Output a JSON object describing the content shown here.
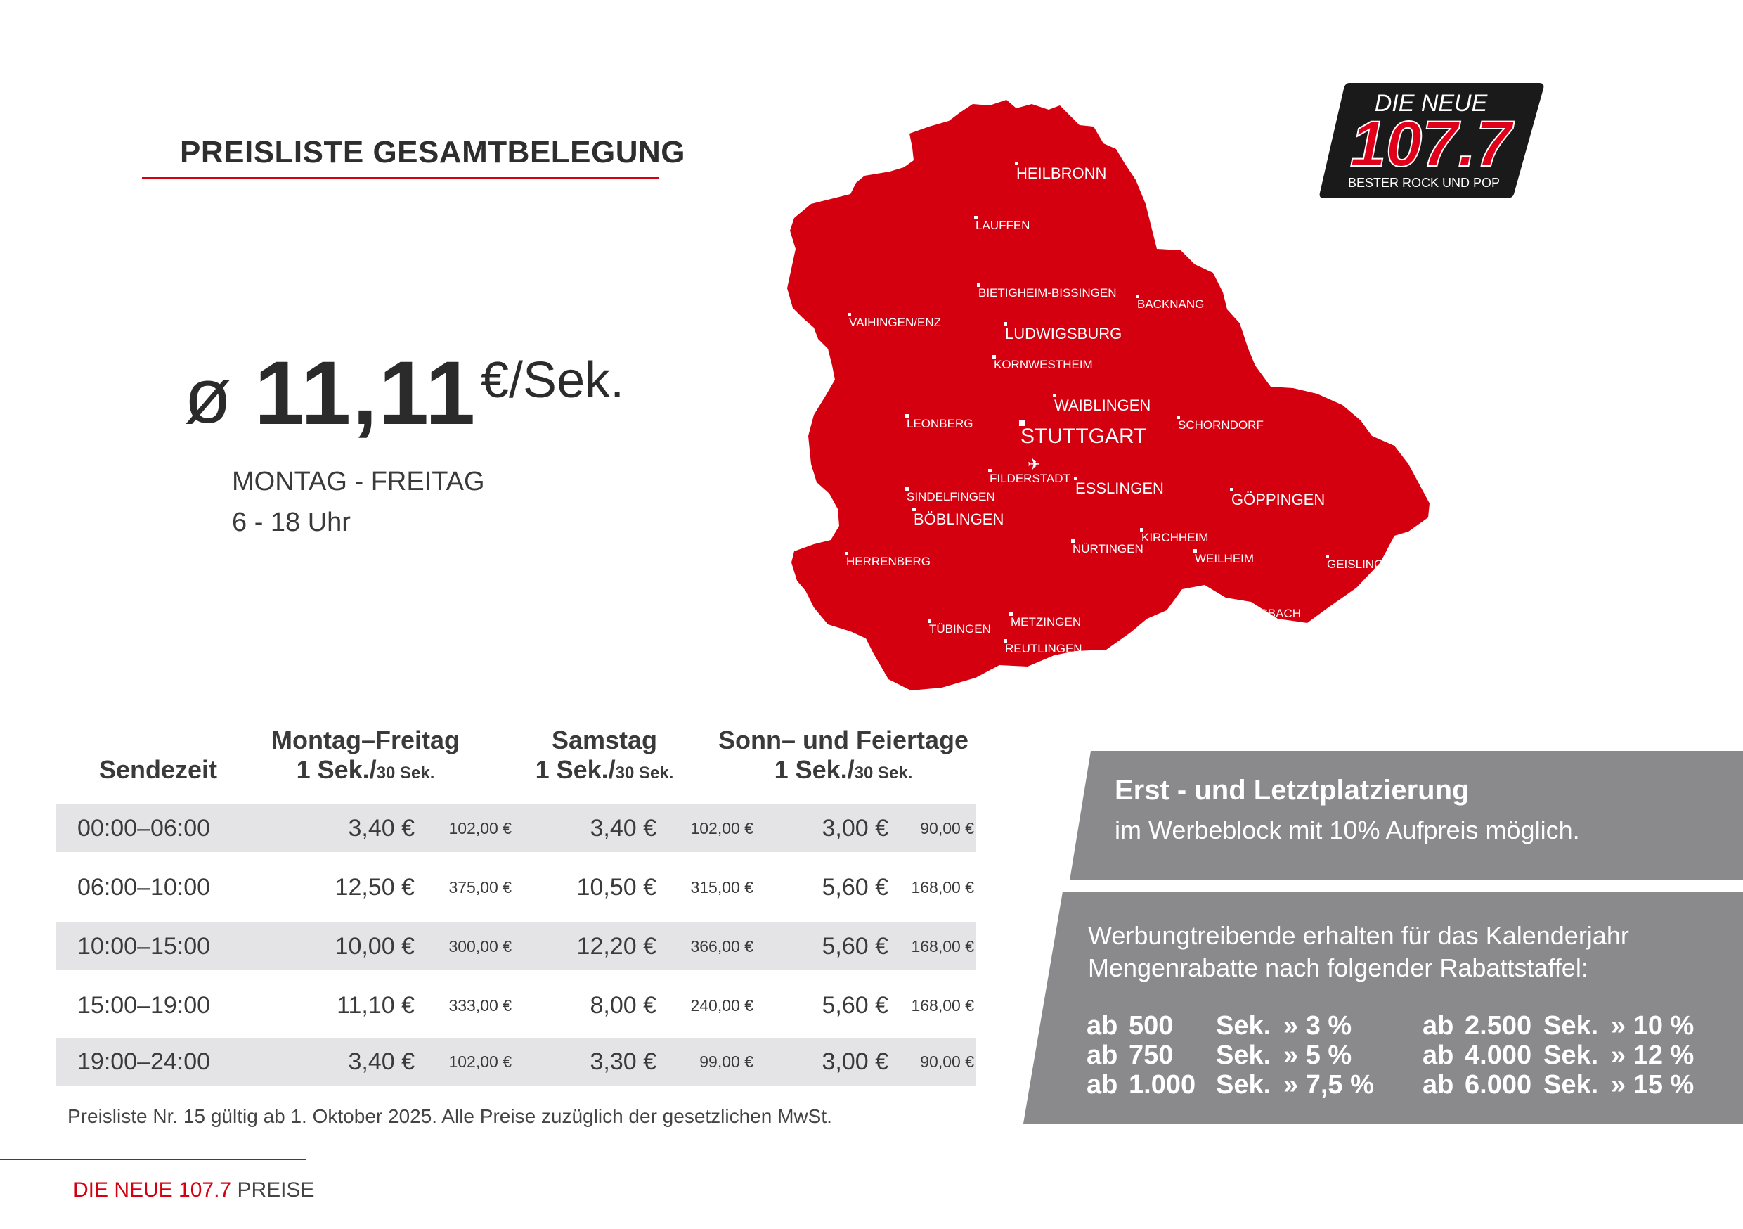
{
  "header": {
    "title": "PREISLISTE GESAMTBELEGUNG"
  },
  "price": {
    "symbol": "ø",
    "value": "11,11",
    "unit": "€/Sek.",
    "days": "MONTAG - FREITAG",
    "hours": "6 - 18 Uhr"
  },
  "logo": {
    "line1": "DIE NEUE",
    "number": "107.7",
    "tagline": "BESTER ROCK UND POP"
  },
  "map": {
    "cities": [
      "HEILBRONN",
      "LAUFFEN",
      "BIETIGHEIM-BISSINGEN",
      "BACKNANG",
      "VAIHINGEN/ENZ",
      "LUDWIGSBURG",
      "KORNWESTHEIM",
      "WAIBLINGEN",
      "LEONBERG",
      "STUTTGART",
      "SCHORNDORF",
      "FILDERSTADT",
      "ESSLINGEN",
      "SINDELFINGEN",
      "GÖPPINGEN",
      "BÖBLINGEN",
      "KIRCHHEIM",
      "NÜRTINGEN",
      "WEILHEIM",
      "HERRENBERG",
      "GEISLINGEN",
      "GOSBACH",
      "METZINGEN",
      "TÜBINGEN",
      "REUTLINGEN"
    ]
  },
  "table": {
    "headers": {
      "sendezeit": "Sendezeit",
      "weekday": "Montag–Freitag",
      "weekday_unit_big": "1 Sek./",
      "weekday_unit_small": "30 Sek.",
      "saturday": "Samstag",
      "saturday_unit_big": "1 Sek./",
      "saturday_unit_small": "30 Sek.",
      "sunday": "Sonn– und Feiertage",
      "sunday_unit_big": "1 Sek./",
      "sunday_unit_small": "30 Sek."
    },
    "rows": [
      {
        "time": "00:00–06:00",
        "wd": "3,40 €",
        "wd30": "102,00 €",
        "sa": "3,40 €",
        "sa30": "102,00 €",
        "so": "3,00 €",
        "so30": "90,00 €"
      },
      {
        "time": "06:00–10:00",
        "wd": "12,50 €",
        "wd30": "375,00 €",
        "sa": "10,50 €",
        "sa30": "315,00 €",
        "so": "5,60 €",
        "so30": "168,00 €"
      },
      {
        "time": "10:00–15:00",
        "wd": "10,00 €",
        "wd30": "300,00 €",
        "sa": "12,20 €",
        "sa30": "366,00 €",
        "so": "5,60 €",
        "so30": "168,00 €"
      },
      {
        "time": "15:00–19:00",
        "wd": "11,10 €",
        "wd30": "333,00 €",
        "sa": "8,00 €",
        "sa30": "240,00 €",
        "so": "5,60 €",
        "so30": "168,00 €"
      },
      {
        "time": "19:00–24:00",
        "wd": "3,40 €",
        "wd30": "102,00 €",
        "sa": "3,30 €",
        "sa30": "99,00 €",
        "so": "3,00 €",
        "so30": "90,00 €"
      }
    ],
    "footnote": "Preisliste Nr. 15 gültig ab 1. Oktober 2025. Alle Preise zuzüglich der gesetzlichen MwSt."
  },
  "placement": {
    "heading": "Erst - und Letztplatzierung",
    "body": "im Werbeblock mit 10% Aufpreis möglich."
  },
  "discounts": {
    "intro1": "Werbungtreibende erhalten für das Kalenderjahr",
    "intro2": "Mengenrabatte nach folgender Rabattstaffel:",
    "items": [
      {
        "ab": "ab",
        "amount": "500",
        "unit": "Sek.",
        "pct": "» 3 %"
      },
      {
        "ab": "ab",
        "amount": "750",
        "unit": "Sek.",
        "pct": "» 5 %"
      },
      {
        "ab": "ab",
        "amount": "1.000",
        "unit": "Sek.",
        "pct": "» 7,5 %"
      },
      {
        "ab": "ab",
        "amount": "2.500",
        "unit": "Sek.",
        "pct": "» 10 %"
      },
      {
        "ab": "ab",
        "amount": "4.000",
        "unit": "Sek.",
        "pct": "» 12 %"
      },
      {
        "ab": "ab",
        "amount": "6.000",
        "unit": "Sek.",
        "pct": "» 15 %"
      }
    ]
  },
  "footer": {
    "brand": "DIE NEUE 107.7",
    "section": "PREISE"
  },
  "colors": {
    "accent": "#d5000f",
    "panel": "#8a8a8c",
    "row_shade": "#e4e4e6",
    "text": "#3a3a3a"
  }
}
